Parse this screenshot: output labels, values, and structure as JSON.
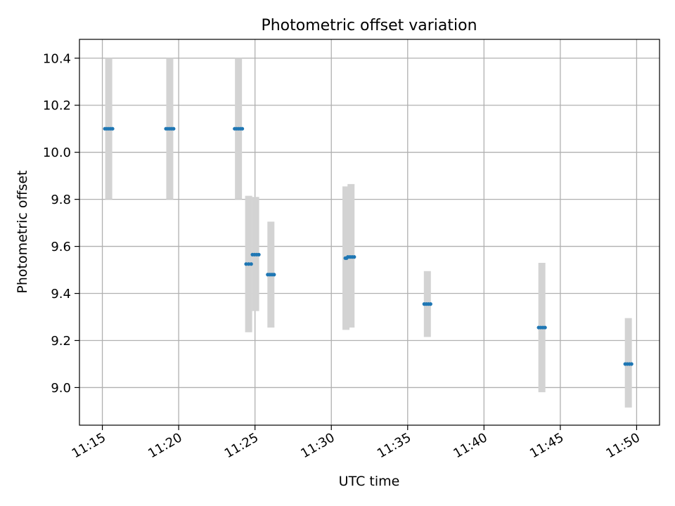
{
  "chart_data": {
    "type": "scatter",
    "title": "Photometric offset variation",
    "xlabel": "UTC time",
    "ylabel": "Photometric offset",
    "xlim": [
      "11:13:30",
      "11:51:30"
    ],
    "ylim": [
      8.84,
      10.48
    ],
    "x_ticks": [
      "11:15",
      "11:20",
      "11:25",
      "11:30",
      "11:35",
      "11:40",
      "11:45",
      "11:50"
    ],
    "y_ticks": [
      9.0,
      9.2,
      9.4,
      9.6,
      9.8,
      10.0,
      10.2,
      10.4
    ],
    "grid": true,
    "series": [
      {
        "marker_color": "#1f77b4",
        "band_color": "#d3d3d3",
        "points": [
          {
            "t_start": "11:15:10",
            "t_end": "11:15:40",
            "y": 10.1,
            "low": 9.8,
            "high": 10.4
          },
          {
            "t_start": "11:19:10",
            "t_end": "11:19:40",
            "y": 10.1,
            "low": 9.8,
            "high": 10.4
          },
          {
            "t_start": "11:23:40",
            "t_end": "11:24:10",
            "y": 10.1,
            "low": 9.8,
            "high": 10.4
          },
          {
            "t_start": "11:24:25",
            "t_end": "11:24:45",
            "y": 9.525,
            "low": 9.235,
            "high": 9.815
          },
          {
            "t_start": "11:24:50",
            "t_end": "11:25:15",
            "y": 9.565,
            "low": 9.325,
            "high": 9.81
          },
          {
            "t_start": "11:25:50",
            "t_end": "11:26:15",
            "y": 9.48,
            "low": 9.255,
            "high": 9.705
          },
          {
            "t_start": "11:30:55",
            "t_end": "11:31:00",
            "y": 9.55,
            "low": 9.245,
            "high": 9.855
          },
          {
            "t_start": "11:31:05",
            "t_end": "11:31:30",
            "y": 9.555,
            "low": 9.255,
            "high": 9.865
          },
          {
            "t_start": "11:36:05",
            "t_end": "11:36:30",
            "y": 9.355,
            "low": 9.215,
            "high": 9.495
          },
          {
            "t_start": "11:43:35",
            "t_end": "11:44:00",
            "y": 9.255,
            "low": 8.98,
            "high": 9.53
          },
          {
            "t_start": "11:49:15",
            "t_end": "11:49:40",
            "y": 9.1,
            "low": 8.915,
            "high": 9.295
          }
        ]
      }
    ]
  }
}
